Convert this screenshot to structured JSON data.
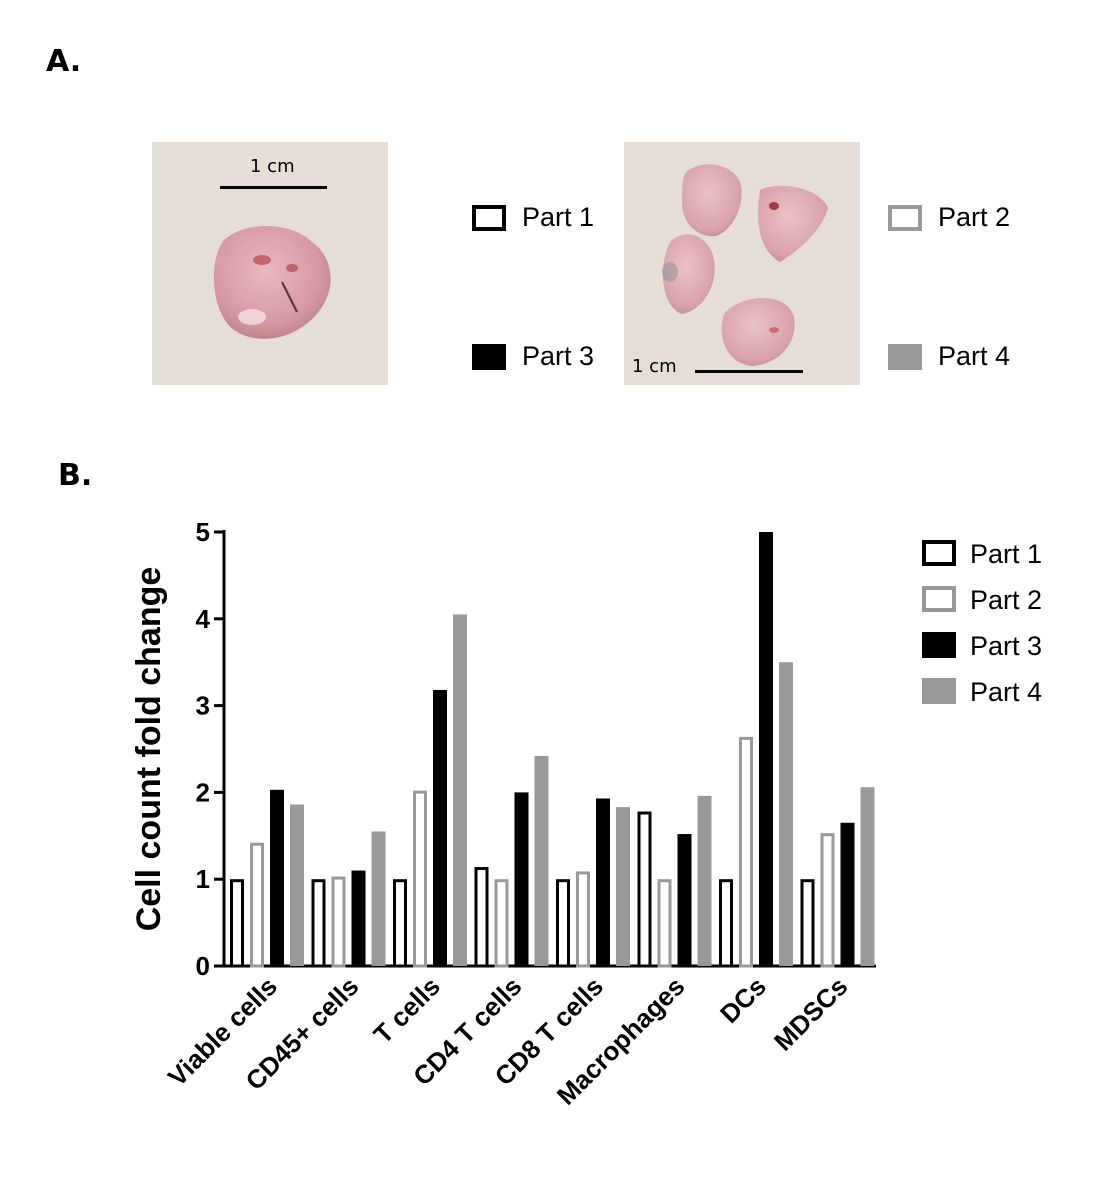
{
  "panel_a": {
    "label": "A.",
    "left_photo": {
      "scale_label": "1 cm"
    },
    "right_photo": {
      "scale_label": "1 cm"
    },
    "legend": [
      {
        "label": "Part 1",
        "style": "outline",
        "color": "#000000"
      },
      {
        "label": "Part 2",
        "style": "outline",
        "color": "#999999"
      },
      {
        "label": "Part 3",
        "style": "fill",
        "color": "#000000"
      },
      {
        "label": "Part 4",
        "style": "fill",
        "color": "#999999"
      }
    ]
  },
  "panel_b": {
    "label": "B."
  },
  "chart_data": {
    "type": "bar",
    "title": "",
    "xlabel": "",
    "ylabel": "Cell count fold change",
    "ylim": [
      0,
      5
    ],
    "yticks": [
      "0",
      "1",
      "2",
      "3",
      "4",
      "5"
    ],
    "categories": [
      "Viable cells",
      "CD45+ cells",
      "T cells",
      "CD4 T cells",
      "CD8 T cells",
      "Macrophages",
      "DCs",
      "MDSCs"
    ],
    "series": [
      {
        "name": "Part 1",
        "style": "outline",
        "color": "#000000",
        "values": [
          1.0,
          1.0,
          1.0,
          1.14,
          1.0,
          1.78,
          1.0,
          1.0
        ]
      },
      {
        "name": "Part 2",
        "style": "outline",
        "color": "#999999",
        "values": [
          1.42,
          1.03,
          2.02,
          1.0,
          1.09,
          1.0,
          2.64,
          1.53
        ]
      },
      {
        "name": "Part 3",
        "style": "fill",
        "color": "#000000",
        "values": [
          2.03,
          1.1,
          3.18,
          2.0,
          1.93,
          1.52,
          5.0,
          1.65
        ]
      },
      {
        "name": "Part 4",
        "style": "fill",
        "color": "#999999",
        "values": [
          1.86,
          1.55,
          4.05,
          2.42,
          1.83,
          1.96,
          3.5,
          2.06
        ]
      }
    ],
    "legend_position": "top-right",
    "grid": false
  }
}
